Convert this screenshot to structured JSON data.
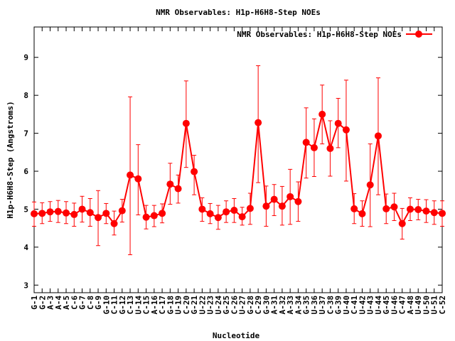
{
  "chart_data": {
    "type": "line",
    "title": "NMR Observables: H1p-H6H8-Step NOEs",
    "xlabel": "Nucleotide",
    "ylabel": "H1p-H6H8-Step (Angstroms)",
    "ylim": [
      2.8,
      9.8
    ],
    "yticks": [
      "3",
      "4",
      "5",
      "6",
      "7",
      "8",
      "9"
    ],
    "legend_position": "top-right",
    "grid": false,
    "series_color": "#ff0000",
    "categories": [
      "G-1",
      "G-2",
      "A-3",
      "A-4",
      "A-5",
      "C-6",
      "G-7",
      "C-8",
      "G-9",
      "G-10",
      "C-11",
      "G-12",
      "C-13",
      "U-14",
      "C-15",
      "A-16",
      "C-17",
      "G-18",
      "U-19",
      "C-20",
      "G-21",
      "U-22",
      "U-23",
      "U-24",
      "G-25",
      "C-26",
      "U-27",
      "G-28",
      "C-29",
      "G-30",
      "A-31",
      "A-32",
      "A-33",
      "A-34",
      "G-35",
      "U-36",
      "U-37",
      "C-38",
      "G-39",
      "U-40",
      "C-41",
      "U-42",
      "U-43",
      "U-44",
      "G-45",
      "U-46",
      "C-47",
      "A-48",
      "U-49",
      "U-50",
      "U-51",
      "C-52"
    ],
    "series": [
      {
        "name": "NMR Observables: H1p-H6H8-Step NOEs",
        "values": [
          4.88,
          4.89,
          4.93,
          4.94,
          4.9,
          4.86,
          5.0,
          4.91,
          4.78,
          4.89,
          4.62,
          4.96,
          5.9,
          5.8,
          4.79,
          4.83,
          4.89,
          5.66,
          5.54,
          7.26,
          5.99,
          5.0,
          4.88,
          4.78,
          4.93,
          4.97,
          4.8,
          5.02,
          7.28,
          5.08,
          5.26,
          5.08,
          5.33,
          5.2,
          6.76,
          6.62,
          7.5,
          6.6,
          7.26,
          7.09,
          5.01,
          4.88,
          5.64,
          6.93,
          5.01,
          5.06,
          4.62,
          5.0,
          4.99,
          4.95,
          4.91,
          4.89
        ],
        "err_low": [
          4.55,
          4.62,
          4.68,
          4.65,
          4.62,
          4.55,
          4.66,
          4.55,
          4.04,
          4.62,
          4.32,
          4.66,
          3.8,
          4.85,
          4.48,
          4.54,
          4.64,
          5.13,
          5.16,
          6.1,
          5.38,
          4.68,
          4.62,
          4.47,
          4.65,
          4.65,
          4.58,
          4.6,
          5.7,
          4.55,
          4.83,
          4.58,
          4.6,
          4.68,
          5.82,
          5.86,
          6.72,
          5.87,
          6.62,
          5.74,
          4.62,
          4.55,
          4.54,
          5.38,
          4.62,
          4.7,
          4.21,
          4.7,
          4.72,
          4.65,
          4.6,
          4.55
        ],
        "err_high": [
          5.19,
          5.17,
          5.2,
          5.23,
          5.2,
          5.16,
          5.34,
          5.28,
          5.49,
          5.15,
          4.95,
          5.26,
          7.96,
          6.7,
          5.1,
          5.1,
          5.14,
          6.21,
          5.9,
          8.38,
          6.42,
          5.3,
          5.15,
          5.1,
          5.22,
          5.28,
          5.05,
          5.42,
          8.78,
          5.61,
          5.65,
          5.6,
          6.05,
          5.72,
          7.67,
          7.38,
          8.27,
          7.33,
          7.92,
          8.4,
          5.41,
          5.22,
          6.72,
          8.46,
          5.4,
          5.42,
          5.02,
          5.3,
          5.26,
          5.25,
          5.22,
          5.22
        ]
      }
    ]
  }
}
